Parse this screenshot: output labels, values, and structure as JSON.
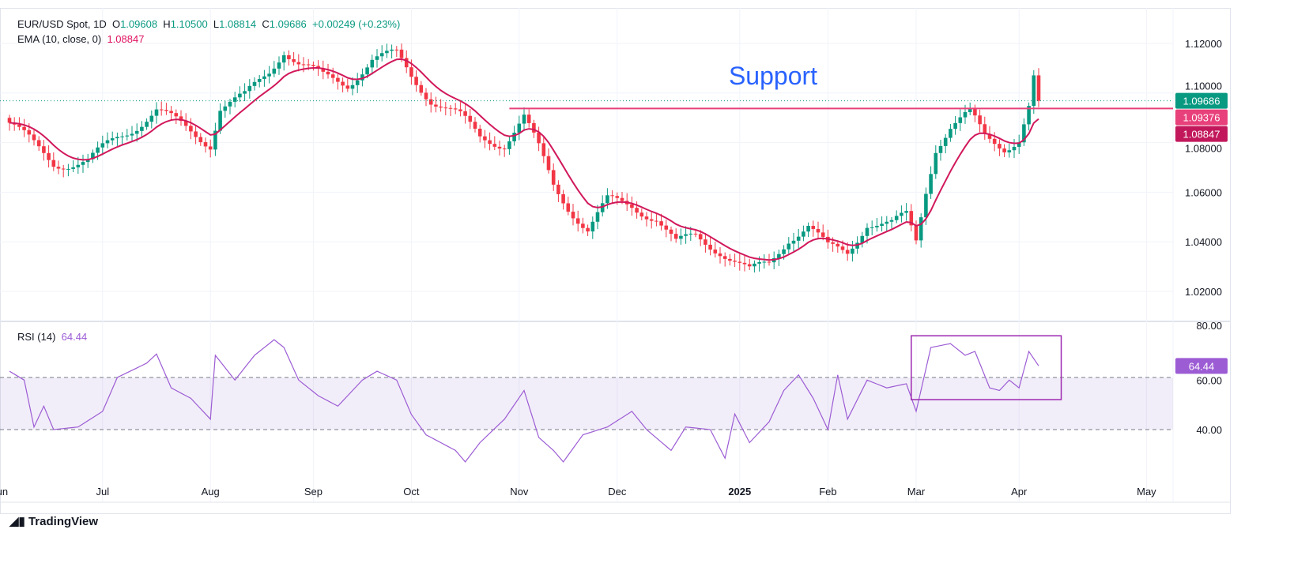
{
  "header": {
    "symbol": "EUR/USD Spot, 1D",
    "open_label": "O",
    "open": "1.09608",
    "high_label": "H",
    "high": "1.10500",
    "low_label": "L",
    "low": "1.08814",
    "close_label": "C",
    "close": "1.09686",
    "change": "+0.00249 (+0.23%)",
    "ema_label": "EMA (10, close, 0)",
    "ema_value": "1.08847",
    "rsi_label": "RSI (14)",
    "rsi_value": "64.44"
  },
  "branding": "TradingView",
  "colors": {
    "up": "#089981",
    "down": "#f23645",
    "ema": "#d1185b",
    "support": "#e8407a",
    "rsi": "#9c5cd4",
    "annotation": "#2962ff",
    "box": "#9c27b0"
  },
  "chart_data": [
    {
      "type": "candlestick",
      "title": "EUR/USD Spot, 1D",
      "ylim": [
        1.012,
        1.126
      ],
      "y_ticks": [
        "1.12000",
        "1.10000",
        "1.08000",
        "1.06000",
        "1.04000",
        "1.02000"
      ],
      "y_tick_values": [
        1.12,
        1.1,
        1.08,
        1.06,
        1.04,
        1.02
      ],
      "price_badges": [
        {
          "label": "1.09686",
          "value": 1.09686,
          "color": "#089981"
        },
        {
          "label": "1.09376",
          "value": 1.09376,
          "color": "#e8407a"
        },
        {
          "label": "1.08847",
          "value": 1.08847,
          "color": "#c2185b"
        }
      ],
      "x_months": [
        {
          "label": "Jun",
          "day": -2
        },
        {
          "label": "Jul",
          "day": 19
        },
        {
          "label": "Aug",
          "day": 41
        },
        {
          "label": "Sep",
          "day": 62
        },
        {
          "label": "Oct",
          "day": 82
        },
        {
          "label": "Nov",
          "day": 104
        },
        {
          "label": "Dec",
          "day": 124
        },
        {
          "label": "2025",
          "day": 149,
          "bold": true
        },
        {
          "label": "Feb",
          "day": 167
        },
        {
          "label": "Mar",
          "day": 185
        },
        {
          "label": "Apr",
          "day": 206
        },
        {
          "label": "May",
          "day": 232
        }
      ],
      "close_waypoints": [
        [
          0,
          1.088
        ],
        [
          5,
          1.0786
        ],
        [
          9,
          1.072
        ],
        [
          16,
          1.072
        ],
        [
          22,
          1.082
        ],
        [
          30,
          1.093
        ],
        [
          35,
          1.0866
        ],
        [
          41,
          1.08
        ],
        [
          43,
          1.0945
        ],
        [
          48,
          1.098
        ],
        [
          53,
          1.109
        ],
        [
          56,
          1.118
        ],
        [
          59,
          1.112
        ],
        [
          64,
          1.106
        ],
        [
          69,
          1.104
        ],
        [
          74,
          1.1136
        ],
        [
          79,
          1.115
        ],
        [
          82,
          1.107
        ],
        [
          86,
          1.098
        ],
        [
          92,
          1.09
        ],
        [
          96,
          1.082
        ],
        [
          101,
          1.08
        ],
        [
          105,
          1.09
        ],
        [
          108,
          1.077
        ],
        [
          111,
          1.0627
        ],
        [
          114,
          1.0547
        ],
        [
          118,
          1.045
        ],
        [
          122,
          1.056
        ],
        [
          127,
          1.0547
        ],
        [
          132,
          1.05
        ],
        [
          136,
          1.0388
        ],
        [
          140,
          1.042
        ],
        [
          145,
          1.037
        ],
        [
          148,
          1.0324
        ],
        [
          151,
          1.0276
        ],
        [
          155,
          1.0308
        ],
        [
          159,
          1.042
        ],
        [
          163,
          1.0467
        ],
        [
          167,
          1.037
        ],
        [
          171,
          1.0356
        ],
        [
          175,
          1.0483
        ],
        [
          180,
          1.0467
        ],
        [
          183,
          1.05
        ],
        [
          185,
          1.04
        ],
        [
          187,
          1.061
        ],
        [
          189,
          1.0786
        ],
        [
          192,
          1.0866
        ],
        [
          196,
          1.0913
        ],
        [
          199,
          1.082
        ],
        [
          203,
          1.0786
        ],
        [
          206,
          1.082
        ],
        [
          208,
          1.0945
        ],
        [
          209,
          1.1057
        ],
        [
          210,
          1.09686
        ]
      ],
      "ema_period": 10,
      "support": {
        "label": "Support",
        "value": 1.09376,
        "from_day": 102
      }
    },
    {
      "type": "line",
      "title": "RSI (14)",
      "ylim": [
        20,
        84
      ],
      "y_ticks": [
        "80.00",
        "60.00",
        "40.00"
      ],
      "y_tick_values": [
        80,
        60,
        40
      ],
      "band": [
        40,
        60
      ],
      "rsi_waypoints": [
        [
          0,
          62.4
        ],
        [
          3,
          59
        ],
        [
          5,
          41
        ],
        [
          7,
          49
        ],
        [
          9,
          40
        ],
        [
          14,
          41
        ],
        [
          19,
          47
        ],
        [
          22,
          60
        ],
        [
          28,
          65.5
        ],
        [
          30,
          69
        ],
        [
          33,
          56
        ],
        [
          37,
          52
        ],
        [
          41,
          44
        ],
        [
          42,
          68.5
        ],
        [
          46,
          59
        ],
        [
          50,
          68.5
        ],
        [
          54,
          74.5
        ],
        [
          56,
          71.5
        ],
        [
          59,
          59
        ],
        [
          63,
          53
        ],
        [
          67,
          49
        ],
        [
          72,
          59
        ],
        [
          75,
          62.4
        ],
        [
          79,
          59
        ],
        [
          82,
          45.8
        ],
        [
          85,
          38
        ],
        [
          91,
          32
        ],
        [
          93,
          27.6
        ],
        [
          96,
          35
        ],
        [
          101,
          44
        ],
        [
          105,
          55
        ],
        [
          108,
          37
        ],
        [
          111,
          32
        ],
        [
          113,
          27.6
        ],
        [
          117,
          38
        ],
        [
          122,
          41
        ],
        [
          127,
          47
        ],
        [
          130,
          40
        ],
        [
          135,
          32
        ],
        [
          138,
          41
        ],
        [
          143,
          40
        ],
        [
          146,
          29
        ],
        [
          148,
          46
        ],
        [
          151,
          35
        ],
        [
          155,
          43
        ],
        [
          158,
          55
        ],
        [
          161,
          61
        ],
        [
          164,
          52
        ],
        [
          167,
          40
        ],
        [
          169,
          61
        ],
        [
          171,
          44
        ],
        [
          175,
          59
        ],
        [
          179,
          56
        ],
        [
          183,
          57.6
        ],
        [
          185,
          47
        ],
        [
          188,
          71.5
        ],
        [
          192,
          73
        ],
        [
          195,
          68.5
        ],
        [
          197,
          70
        ],
        [
          200,
          56
        ],
        [
          202,
          55
        ],
        [
          204,
          59
        ],
        [
          206,
          56
        ],
        [
          208,
          70
        ],
        [
          210,
          64.44
        ]
      ],
      "highlight_box": {
        "from_day": 184,
        "to_day": 214.6,
        "top": 76,
        "bottom": 51.5
      }
    }
  ]
}
